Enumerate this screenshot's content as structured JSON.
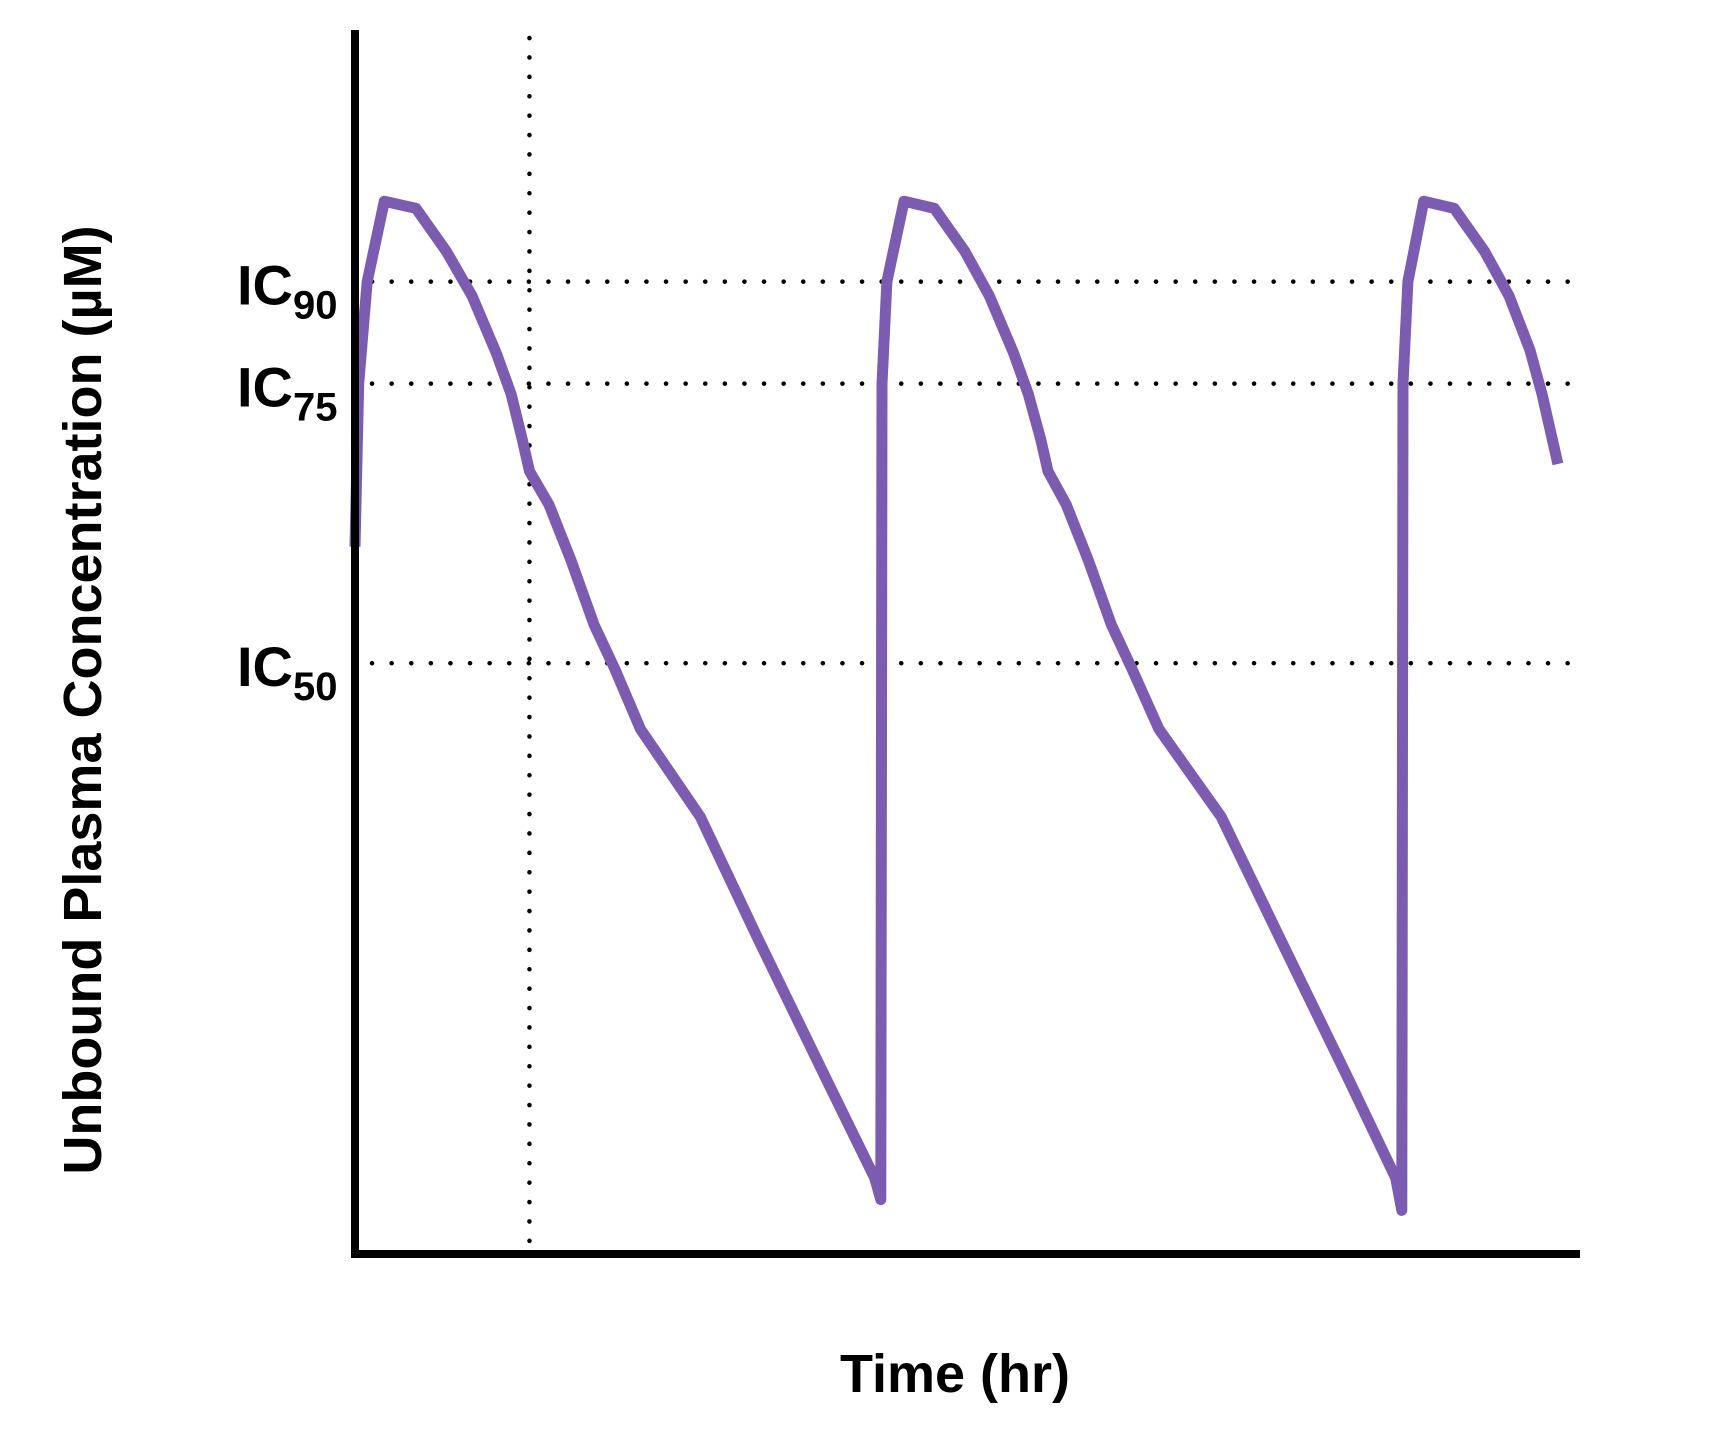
{
  "chart_data": {
    "type": "line",
    "title": "",
    "xlabel": "Time (hr)",
    "ylabel": "Unbound  Plasma Concentration (µM)",
    "xlim": [
      0,
      100
    ],
    "ylim": [
      0,
      100
    ],
    "grid": false,
    "legend": "none",
    "reference_lines": [
      {
        "name": "IC90",
        "main": "IC",
        "sub": "90",
        "y": 80.7
      },
      {
        "name": "IC75",
        "main": "IC",
        "sub": "75",
        "y": 72.2
      },
      {
        "name": "IC50",
        "main": "IC",
        "sub": "50",
        "y": 48.9
      }
    ],
    "dosing_marker": {
      "x": 14.3
    },
    "series": [
      {
        "name": "Unbound plasma concentration",
        "color": "#7b5cb0",
        "points": [
          [
            0,
            58.6
          ],
          [
            0.3,
            72.2
          ],
          [
            1.0,
            80.7
          ],
          [
            2.4,
            87.4
          ],
          [
            5.0,
            86.8
          ],
          [
            7.5,
            83.2
          ],
          [
            9.6,
            79.5
          ],
          [
            11.6,
            74.7
          ],
          [
            12.8,
            71.3
          ],
          [
            13.7,
            67.6
          ],
          [
            14.3,
            64.9
          ],
          [
            15.9,
            62.1
          ],
          [
            17.7,
            57.5
          ],
          [
            19.6,
            52.1
          ],
          [
            21.3,
            48.4
          ],
          [
            23.4,
            43.4
          ],
          [
            28.3,
            36.1
          ],
          [
            33.0,
            26.0
          ],
          [
            38.7,
            14.1
          ],
          [
            42.6,
            6.0
          ],
          [
            43.1,
            4.2
          ],
          [
            43.2,
            72.2
          ],
          [
            43.6,
            80.7
          ],
          [
            45.0,
            87.4
          ],
          [
            47.5,
            86.8
          ],
          [
            50.0,
            83.2
          ],
          [
            52.0,
            79.5
          ],
          [
            54.0,
            74.7
          ],
          [
            55.2,
            71.3
          ],
          [
            56.2,
            67.6
          ],
          [
            56.8,
            64.9
          ],
          [
            58.3,
            62.1
          ],
          [
            60.1,
            57.5
          ],
          [
            62.0,
            52.1
          ],
          [
            63.7,
            48.4
          ],
          [
            65.9,
            43.4
          ],
          [
            71.0,
            36.1
          ],
          [
            75.8,
            26.0
          ],
          [
            81.5,
            14.1
          ],
          [
            85.3,
            6.0
          ],
          [
            85.8,
            3.3
          ],
          [
            85.9,
            72.2
          ],
          [
            86.3,
            80.7
          ],
          [
            87.6,
            87.4
          ],
          [
            90.1,
            86.8
          ],
          [
            92.6,
            83.2
          ],
          [
            94.6,
            79.5
          ],
          [
            96.3,
            75.0
          ],
          [
            97.3,
            71.3
          ],
          [
            98.6,
            65.5
          ]
        ]
      }
    ]
  },
  "colors": {
    "curve": "#7b5cb0",
    "axis": "#000000",
    "reference": "#000000"
  }
}
